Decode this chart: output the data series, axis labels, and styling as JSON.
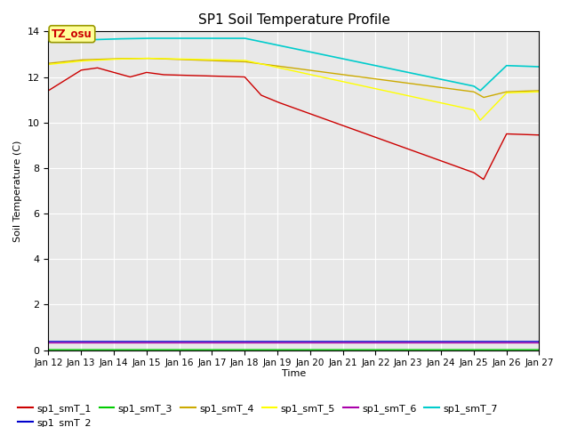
{
  "title": "SP1 Soil Temperature Profile",
  "xlabel": "Time",
  "ylabel": "Soil Temperature (C)",
  "annotation_text": "TZ_osu",
  "annotation_color": "#cc0000",
  "annotation_bg": "#ffff99",
  "annotation_border": "#999900",
  "ylim": [
    0,
    14
  ],
  "yticks": [
    0,
    2,
    4,
    6,
    8,
    10,
    12,
    14
  ],
  "background_color": "#e8e8e8",
  "legend_labels": [
    "sp1_smT_1",
    "sp1_smT_2",
    "sp1_smT_3",
    "sp1_smT_4",
    "sp1_smT_5",
    "sp1_smT_6",
    "sp1_smT_7"
  ],
  "line_colors": {
    "sp1_smT_1": "#cc0000",
    "sp1_smT_2": "#0000cc",
    "sp1_smT_3": "#00cc00",
    "sp1_smT_4": "#ccaa00",
    "sp1_smT_5": "#ffff00",
    "sp1_smT_6": "#aa00aa",
    "sp1_smT_7": "#00cccc"
  },
  "x_start_day": 12,
  "x_end_day": 27,
  "xtick_days": [
    12,
    13,
    14,
    15,
    16,
    17,
    18,
    19,
    20,
    21,
    22,
    23,
    24,
    25,
    26,
    27
  ]
}
